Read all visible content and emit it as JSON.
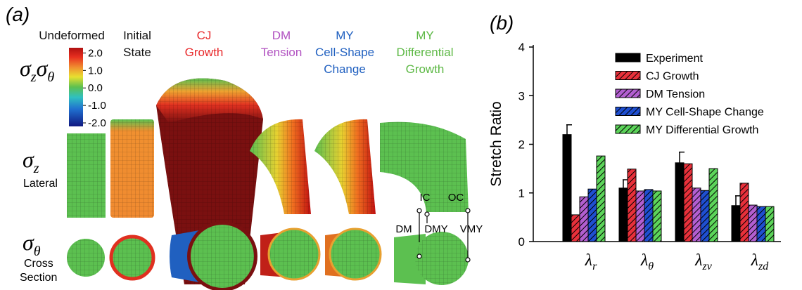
{
  "panel_a": {
    "label": "(a)",
    "columns": [
      {
        "lines": [
          "Undeformed"
        ]
      },
      {
        "lines": [
          "Initial",
          "State"
        ]
      },
      {
        "lines": [
          "CJ",
          "Growth"
        ]
      },
      {
        "lines": [
          "DM",
          "Tension"
        ]
      },
      {
        "lines": [
          "MY",
          "Cell-Shape",
          "Change"
        ]
      },
      {
        "lines": [
          "MY",
          "Differential",
          "Growth"
        ]
      }
    ],
    "rows": [
      {
        "stress": [
          {
            "symbol": "σ",
            "sub": "z"
          },
          {
            "symbol": "σ",
            "sub": "θ"
          }
        ]
      },
      {
        "stress": [
          {
            "symbol": "σ",
            "sub": "z"
          }
        ],
        "lines": [
          "Lateral"
        ]
      },
      {
        "stress": [
          {
            "symbol": "σ",
            "sub": "θ"
          }
        ],
        "lines": [
          "Cross",
          "Section"
        ]
      }
    ],
    "colorbar": {
      "range": [
        -2.2,
        2.3
      ],
      "ticks": [
        {
          "value": 2,
          "label": "2.0"
        },
        {
          "value": 1,
          "label": "1.0"
        },
        {
          "value": 0,
          "label": "0.0"
        },
        {
          "value": -1,
          "label": "-1.0"
        },
        {
          "value": -2,
          "label": "-2.0"
        }
      ]
    },
    "annotations": [
      "IC",
      "OC",
      "DM",
      "DMY",
      "VMY"
    ]
  },
  "chart_data": {
    "type": "bar",
    "label": "(b)",
    "y_label": "Stretch Ratio",
    "categories": [
      {
        "symbol": "λ",
        "sub": "r"
      },
      {
        "symbol": "λ",
        "sub": "θ"
      },
      {
        "symbol": "λ",
        "sub": "zv"
      },
      {
        "symbol": "λ",
        "sub": "zd"
      }
    ],
    "series": [
      {
        "name": "Experiment",
        "color": "#000000",
        "hatch": false,
        "values": [
          2.2,
          1.1,
          1.62,
          0.74
        ],
        "errors": [
          0.2,
          0.17,
          0.22,
          0.2
        ]
      },
      {
        "name": "CJ Growth",
        "color": "#e8303a",
        "hatch": true,
        "values": [
          0.55,
          1.49,
          1.6,
          1.2
        ]
      },
      {
        "name": "DM Tension",
        "color": "#b25ed0",
        "hatch": true,
        "values": [
          0.92,
          1.04,
          1.1,
          0.75
        ]
      },
      {
        "name": "MY Cell-Shape Change",
        "color": "#1f4fd1",
        "hatch": true,
        "values": [
          1.08,
          1.07,
          1.05,
          0.72
        ]
      },
      {
        "name": "MY Differential Growth",
        "color": "#5cd45a",
        "hatch": true,
        "values": [
          1.76,
          1.04,
          1.5,
          0.72
        ]
      }
    ],
    "ylim": [
      0,
      4
    ],
    "yticks": [
      0,
      1,
      2,
      3,
      4
    ],
    "legend": "upper-right"
  }
}
